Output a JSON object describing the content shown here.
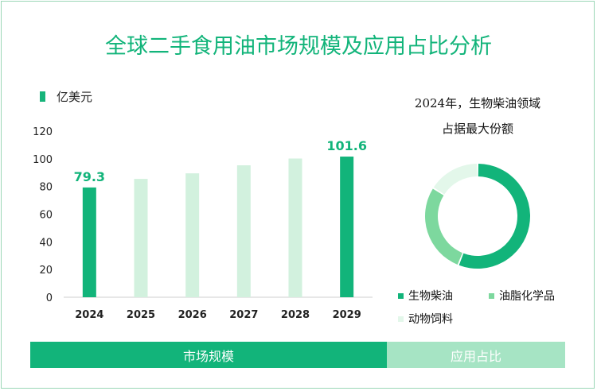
{
  "title": "全球二手食用油市场规模及应用占比分析",
  "chart_data": [
    {
      "type": "bar",
      "unit_label": "亿美元",
      "categories": [
        "2024",
        "2025",
        "2026",
        "2027",
        "2028",
        "2029"
      ],
      "values": [
        79.3,
        85.5,
        89.5,
        95.3,
        100.2,
        101.6
      ],
      "data_labels": [
        "79.3",
        "",
        "",
        "",
        "",
        "101.6"
      ],
      "highlight": [
        true,
        false,
        false,
        false,
        false,
        true
      ],
      "y_ticks": [
        0,
        20,
        40,
        60,
        80,
        100,
        120
      ],
      "ylim": [
        0,
        120
      ],
      "grid": false,
      "colors": {
        "highlight": "#12b47a",
        "normal": "#d2f1de",
        "label": "#12b47a"
      }
    },
    {
      "type": "pie",
      "style": "donut",
      "title_lines": [
        "2024年，生物柴油领域",
        "占据最大份额"
      ],
      "slices": [
        {
          "name": "生物柴油",
          "value": 56,
          "color": "#12b47a"
        },
        {
          "name": "油脂化学品",
          "value": 28,
          "color": "#7dd89e"
        },
        {
          "name": "动物饲料",
          "value": 16,
          "color": "#e3f7ea"
        }
      ],
      "legend_position": "bottom"
    }
  ],
  "tabs": [
    {
      "label": "市场规模"
    },
    {
      "label": "应用占比"
    }
  ]
}
